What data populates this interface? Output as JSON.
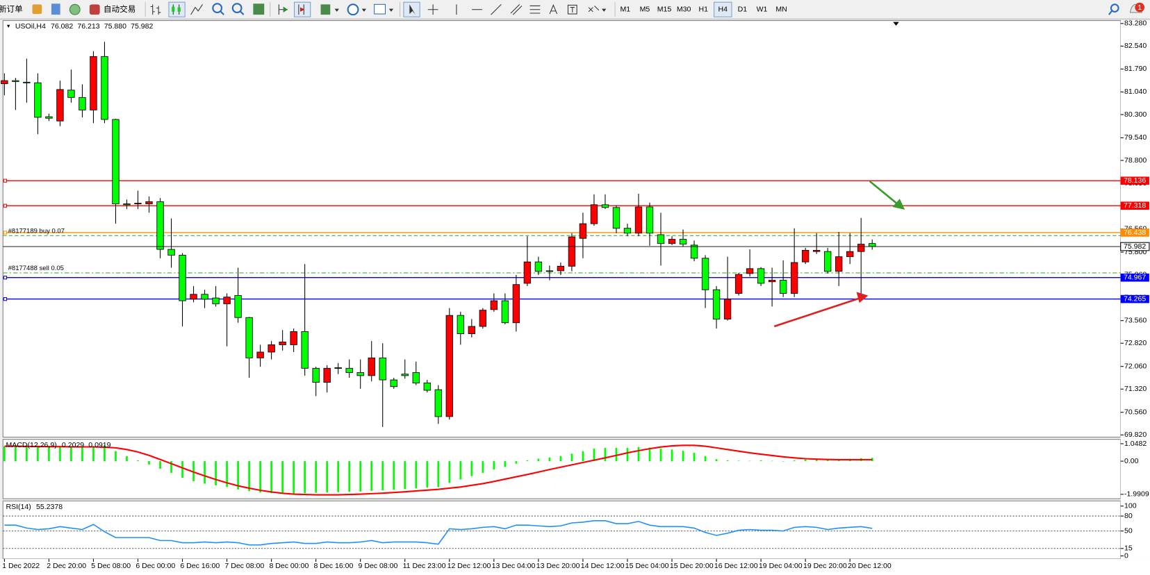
{
  "toolbar": {
    "new_order": "新订单",
    "auto_trading": "自动交易",
    "timeframes": [
      "M1",
      "M5",
      "M15",
      "M30",
      "H1",
      "H4",
      "D1",
      "W1",
      "MN"
    ],
    "active": "H4",
    "notifications": 1
  },
  "chart_data": [
    {
      "type": "candlestick",
      "title": "USOil,H4",
      "last_bar_labels": {
        "open": "76.082",
        "high": "76.213",
        "low": "75.880",
        "close": "75.982"
      },
      "categories": [
        "1 Dec 2022",
        null,
        null,
        null,
        "2 Dec 20:00",
        null,
        null,
        null,
        "5 Dec 08:00",
        null,
        null,
        null,
        "6 Dec 00:00",
        null,
        null,
        null,
        "6 Dec 16:00",
        null,
        null,
        null,
        "7 Dec 08:00",
        null,
        null,
        null,
        "8 Dec 00:00",
        null,
        null,
        null,
        "8 Dec 16:00",
        null,
        null,
        null,
        "9 Dec 08:00",
        null,
        null,
        null,
        "11 Dec 23:00",
        null,
        null,
        null,
        "12 Dec 12:00",
        null,
        null,
        null,
        "13 Dec 04:00",
        null,
        null,
        null,
        "13 Dec 20:00",
        null,
        null,
        null,
        "14 Dec 12:00",
        null,
        null,
        null,
        "15 Dec 04:00",
        null,
        null,
        null,
        "15 Dec 20:00",
        null,
        null,
        null,
        "16 Dec 12:00",
        null,
        null,
        null,
        "19 Dec 04:00",
        null,
        null,
        null,
        "19 Dec 20:00",
        null,
        null,
        null,
        "20 Dec 12:00",
        null,
        null
      ],
      "open": [
        81.31,
        81.41,
        81.36,
        81.34,
        80.23,
        80.09,
        81.1,
        80.86,
        80.45,
        82.2,
        80.14,
        77.38,
        77.38,
        77.38,
        77.45,
        75.89,
        75.7,
        74.26,
        74.42,
        74.3,
        74.11,
        74.38,
        73.66,
        72.34,
        72.53,
        72.77,
        72.77,
        73.2,
        72.0,
        71.54,
        72.02,
        72.0,
        71.86,
        71.76,
        72.34,
        71.62,
        71.81,
        71.86,
        71.52,
        71.3,
        70.42,
        73.73,
        73.13,
        73.37,
        73.92,
        74.21,
        73.49,
        74.78,
        75.48,
        75.19,
        75.19,
        75.34,
        76.25,
        76.73,
        77.35,
        77.26,
        76.58,
        76.42,
        77.28,
        76.37,
        76.08,
        76.22,
        76.03,
        75.6,
        74.57,
        73.61,
        74.45,
        75.1,
        75.26,
        74.83,
        74.88,
        74.45,
        75.48,
        75.82,
        75.82,
        75.17,
        75.65,
        75.82,
        76.082
      ],
      "high": [
        81.65,
        81.5,
        82.13,
        81.65,
        80.33,
        81.41,
        81.77,
        81.29,
        82.37,
        82.68,
        80.16,
        77.52,
        77.81,
        77.62,
        77.57,
        76.9,
        75.77,
        74.69,
        74.57,
        74.69,
        74.45,
        75.29,
        73.68,
        72.77,
        72.89,
        73.25,
        73.3,
        75.41,
        72.05,
        72.1,
        72.17,
        72.29,
        72.29,
        72.89,
        72.82,
        71.69,
        72.29,
        72.22,
        71.62,
        71.45,
        73.97,
        73.85,
        73.61,
        73.97,
        74.45,
        74.45,
        75.05,
        76.32,
        75.65,
        75.36,
        75.46,
        76.42,
        77.09,
        77.69,
        77.69,
        77.33,
        76.73,
        77.71,
        77.42,
        77.09,
        76.32,
        76.54,
        76.18,
        75.7,
        74.69,
        75.65,
        75.12,
        75.89,
        75.31,
        75.29,
        75.53,
        76.58,
        75.94,
        76.42,
        75.94,
        76.46,
        76.42,
        76.92,
        76.213
      ],
      "low": [
        80.93,
        80.45,
        80.69,
        79.66,
        80.09,
        79.92,
        80.69,
        80.21,
        80.02,
        80.02,
        76.73,
        77.21,
        77.21,
        77.09,
        75.6,
        75.29,
        73.37,
        74.16,
        73.97,
        74.02,
        72.72,
        73.49,
        71.69,
        72.05,
        72.29,
        72.58,
        72.53,
        71.76,
        71.09,
        71.21,
        71.81,
        71.69,
        71.33,
        71.57,
        70.08,
        71.33,
        71.66,
        71.45,
        71.21,
        70.18,
        70.32,
        72.77,
        73.01,
        73.3,
        73.85,
        73.44,
        73.2,
        74.69,
        75.05,
        74.88,
        75.05,
        75.17,
        75.6,
        76.66,
        77.21,
        76.42,
        76.32,
        76.32,
        76.01,
        75.36,
        76.03,
        75.98,
        75.5,
        73.97,
        73.3,
        73.56,
        74.38,
        75.0,
        74.69,
        74.02,
        74.33,
        74.33,
        75.41,
        75.74,
        75.1,
        74.69,
        75.41,
        74.21,
        75.88
      ],
      "close": [
        81.41,
        81.38,
        81.34,
        80.21,
        80.18,
        81.12,
        80.86,
        80.45,
        82.2,
        80.14,
        77.38,
        77.35,
        77.4,
        77.45,
        75.89,
        75.7,
        74.21,
        74.42,
        74.26,
        74.11,
        74.33,
        73.66,
        72.34,
        72.53,
        72.77,
        72.86,
        73.2,
        72.0,
        71.54,
        72.0,
        72.0,
        71.86,
        71.76,
        72.34,
        71.62,
        71.4,
        71.76,
        71.52,
        71.28,
        70.42,
        73.73,
        73.13,
        73.37,
        73.9,
        74.21,
        73.49,
        74.74,
        75.48,
        75.17,
        75.17,
        75.34,
        76.3,
        76.73,
        77.35,
        77.26,
        76.58,
        76.42,
        77.28,
        76.42,
        76.08,
        76.22,
        76.06,
        75.6,
        74.57,
        73.61,
        74.26,
        75.07,
        75.26,
        74.78,
        74.88,
        74.45,
        75.46,
        75.86,
        75.86,
        75.17,
        75.65,
        75.82,
        76.06,
        75.982
      ],
      "up_color": "#ff0000",
      "down_color": "#00ff00",
      "ylim": [
        69.82,
        83.28
      ],
      "yticks": [
        {
          "value": 83.28,
          "label": "83.280"
        },
        {
          "value": 82.54,
          "label": "82.540"
        },
        {
          "value": 81.79,
          "label": "81.790"
        },
        {
          "value": 81.04,
          "label": "81.040"
        },
        {
          "value": 80.3,
          "label": "80.300"
        },
        {
          "value": 79.54,
          "label": "79.540"
        },
        {
          "value": 78.8,
          "label": "78.800"
        },
        {
          "value": 78.05,
          "label": "78.050"
        },
        {
          "value": 77.31,
          "label": "77.310"
        },
        {
          "value": 76.56,
          "label": "76.560"
        },
        {
          "value": 75.8,
          "label": "75.800"
        },
        {
          "value": 75.06,
          "label": "75.060"
        },
        {
          "value": 74.31,
          "label": "74.310"
        },
        {
          "value": 73.56,
          "label": "73.560"
        },
        {
          "value": 72.82,
          "label": "72.820"
        },
        {
          "value": 72.06,
          "label": "72.060"
        },
        {
          "value": 71.32,
          "label": "71.320"
        },
        {
          "value": 70.56,
          "label": "70.560"
        },
        {
          "value": 69.82,
          "label": "69.820"
        }
      ],
      "levels": [
        {
          "value": 78.136,
          "color": "#ff0000"
        },
        {
          "value": 77.318,
          "color": "#ff0000"
        },
        {
          "value": 76.438,
          "color": "#ff8c00"
        },
        {
          "value": 74.967,
          "color": "#0000ff"
        },
        {
          "value": 74.265,
          "color": "#0000ff"
        }
      ],
      "orders": [
        {
          "label": "#8177189 buy 0.07",
          "value": 76.34
        },
        {
          "label": "#8177488 sell 0.05",
          "value": 75.12
        }
      ],
      "order_color": "#22aa22"
    },
    {
      "type": "bar",
      "title": "MACD(12,26,9)",
      "color": "#00ff00",
      "values": [
        0.88,
        0.88,
        0.87,
        0.86,
        0.85,
        0.86,
        0.86,
        0.85,
        0.9,
        0.95,
        0.6,
        0.3,
        0.05,
        -0.2,
        -0.45,
        -0.7,
        -1.0,
        -1.2,
        -1.35,
        -1.45,
        -1.55,
        -1.7,
        -1.8,
        -1.88,
        -1.92,
        -1.95,
        -1.95,
        -1.93,
        -1.9,
        -1.88,
        -1.86,
        -1.84,
        -1.82,
        -1.78,
        -1.75,
        -1.72,
        -1.68,
        -1.62,
        -1.58,
        -1.56,
        -1.3,
        -1.1,
        -0.9,
        -0.7,
        -0.5,
        -0.35,
        -0.15,
        0.05,
        0.15,
        0.22,
        0.3,
        0.45,
        0.6,
        0.75,
        0.8,
        0.8,
        0.8,
        0.85,
        0.82,
        0.75,
        0.7,
        0.62,
        0.5,
        0.3,
        0.12,
        0.05,
        0.03,
        0.02,
        0.05,
        0.02,
        0,
        0.05,
        0.1,
        0.12,
        0.1,
        0.12,
        0.14,
        0.18,
        0.2029
      ],
      "line": {
        "color": "#ff0000",
        "values": [
          0.9,
          0.9,
          0.89,
          0.88,
          0.87,
          0.87,
          0.86,
          0.86,
          0.86,
          0.84,
          0.8,
          0.7,
          0.55,
          0.35,
          0.1,
          -0.15,
          -0.4,
          -0.65,
          -0.88,
          -1.1,
          -1.3,
          -1.48,
          -1.62,
          -1.75,
          -1.85,
          -1.93,
          -1.98,
          -2.0,
          -2.02,
          -2.02,
          -2.02,
          -2.0,
          -1.98,
          -1.95,
          -1.92,
          -1.88,
          -1.84,
          -1.79,
          -1.74,
          -1.69,
          -1.62,
          -1.55,
          -1.45,
          -1.35,
          -1.22,
          -1.08,
          -0.94,
          -0.8,
          -0.65,
          -0.5,
          -0.36,
          -0.22,
          -0.08,
          0.06,
          0.2,
          0.35,
          0.5,
          0.63,
          0.75,
          0.85,
          0.92,
          0.95,
          0.95,
          0.9,
          0.8,
          0.7,
          0.6,
          0.5,
          0.42,
          0.34,
          0.26,
          0.2,
          0.15,
          0.12,
          0.1,
          0.09,
          0.09,
          0.09,
          0.0919
        ]
      },
      "ylim": [
        -1.9909,
        1.0482
      ],
      "yticks": [
        1.0482,
        {
          "value": 0,
          "label": "0.00"
        },
        -1.9909
      ]
    },
    {
      "type": "line",
      "title": "RSI(14)",
      "color": "#1e8fff",
      "values": [
        61.8,
        61.8,
        55.9,
        52.9,
        54.4,
        58.8,
        55.9,
        52.9,
        63.2,
        48.5,
        36.8,
        36.8,
        36.8,
        36.8,
        30.9,
        30.9,
        26.5,
        26.5,
        27.9,
        26.5,
        27.9,
        26.5,
        22.1,
        22.1,
        25.0,
        26.5,
        27.9,
        25.0,
        25.0,
        27.9,
        26.5,
        26.5,
        27.9,
        30.9,
        26.5,
        27.9,
        27.9,
        27.9,
        26.5,
        23.5,
        54.4,
        52.9,
        54.4,
        57.4,
        58.8,
        54.4,
        61.8,
        61.8,
        60.3,
        58.8,
        60.3,
        66.2,
        67.6,
        70.6,
        70.6,
        64.7,
        64.7,
        69.1,
        61.8,
        58.8,
        58.8,
        58.8,
        55.9,
        47.1,
        41.2,
        45.6,
        51.5,
        52.9,
        51.5,
        51.5,
        50.0,
        57.4,
        58.8,
        57.4,
        52.9,
        55.9,
        57.4,
        58.8,
        55.2378
      ],
      "ylim": [
        0,
        100
      ],
      "yticks": [
        100,
        80,
        50,
        15,
        0
      ]
    }
  ]
}
